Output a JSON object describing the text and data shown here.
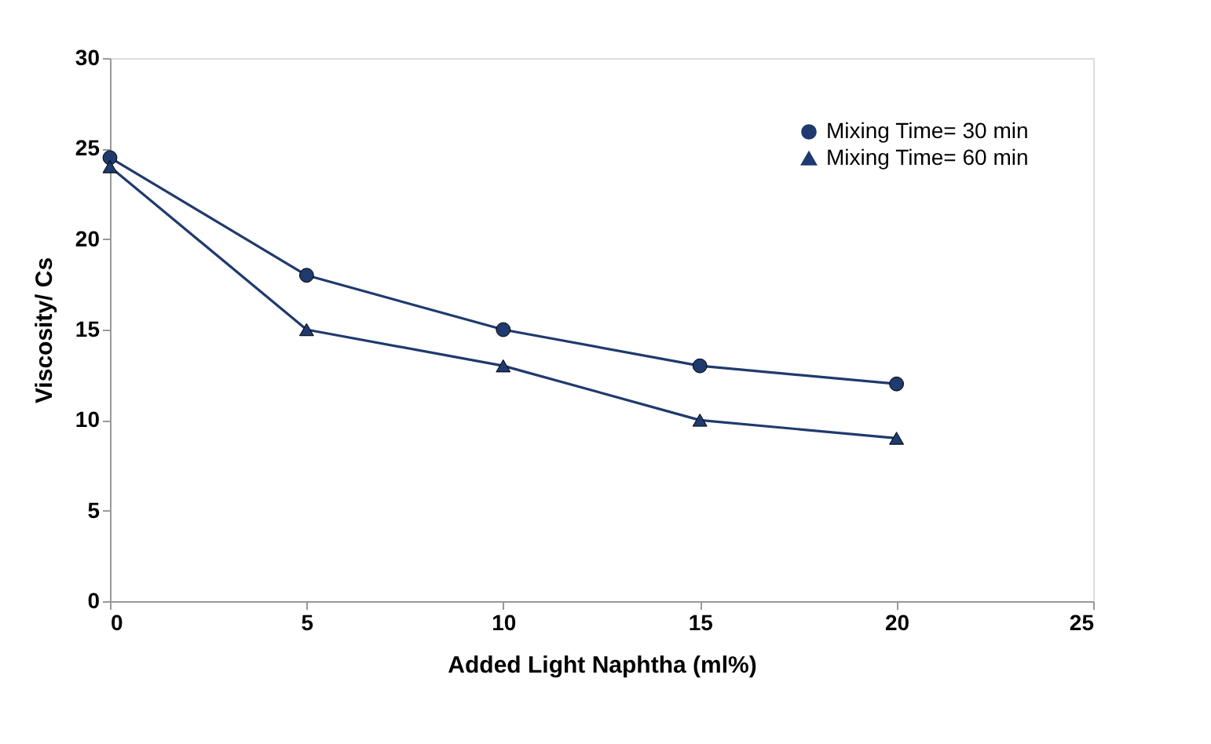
{
  "chart_data": {
    "type": "line",
    "xlabel": "Added Light Naphtha (ml%)",
    "ylabel": "Viscosity/ Cs",
    "x": [
      0,
      5,
      10,
      15,
      20
    ],
    "series": [
      {
        "name": "Mixing Time= 30 min",
        "color": "#1f3a6e",
        "marker": "circle",
        "values": [
          24.5,
          18,
          15,
          13,
          12
        ]
      },
      {
        "name": "Mixing Time= 60 min",
        "color": "#1f3a6e",
        "marker": "triangle",
        "values": [
          24,
          15,
          13,
          10,
          9
        ]
      }
    ],
    "xlim": [
      0,
      25
    ],
    "xticks": [
      0,
      5,
      10,
      15,
      20,
      25
    ],
    "ylim": [
      0,
      30
    ],
    "yticks": [
      0,
      5,
      10,
      15,
      20,
      25,
      30
    ],
    "grid": false,
    "legend": "top right",
    "line_style": "solid"
  }
}
